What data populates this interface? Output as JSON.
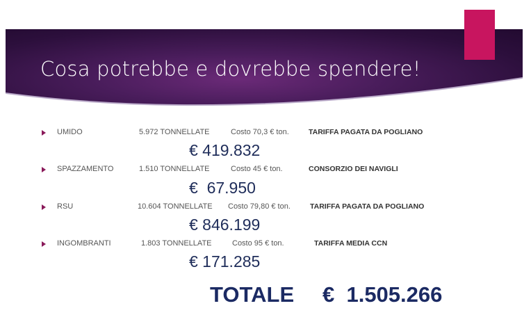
{
  "title": "Cosa potrebbe e dovrebbe spendere!",
  "rows": [
    {
      "category": "UMIDO",
      "quantity": "5.972 TONNELLATE",
      "cost": "Costo 70,3 € ton.",
      "note": "TARIFFA PAGATA DA POGLIANO",
      "amount": "€ 419.832"
    },
    {
      "category": "SPAZZAMENTO",
      "quantity": "1.510 TONNELLATE",
      "cost": "Costo 45 € ton.",
      "note": "CONSORZIO DEI NAVIGLI",
      "amount": "€  67.950"
    },
    {
      "category": "RSU",
      "quantity": "10.604 TONNELLATE",
      "cost": "Costo 79,80 € ton.",
      "note": "TARIFFA PAGATA DA POGLIANO",
      "amount": "€ 846.199"
    },
    {
      "category": "INGOMBRANTI",
      "quantity": "1.803 TONNELLATE",
      "cost": "Costo 95 € ton.",
      "note": "TARIFFA MEDIA CCN",
      "amount": "€ 171.285"
    }
  ],
  "total": {
    "label": "TOTALE",
    "value": "€  1.505.266"
  },
  "colors": {
    "banner": "#3a1450",
    "accent": "#c8155f",
    "amount_text": "#1f2d5a",
    "bullet": "#8a1a5a"
  }
}
